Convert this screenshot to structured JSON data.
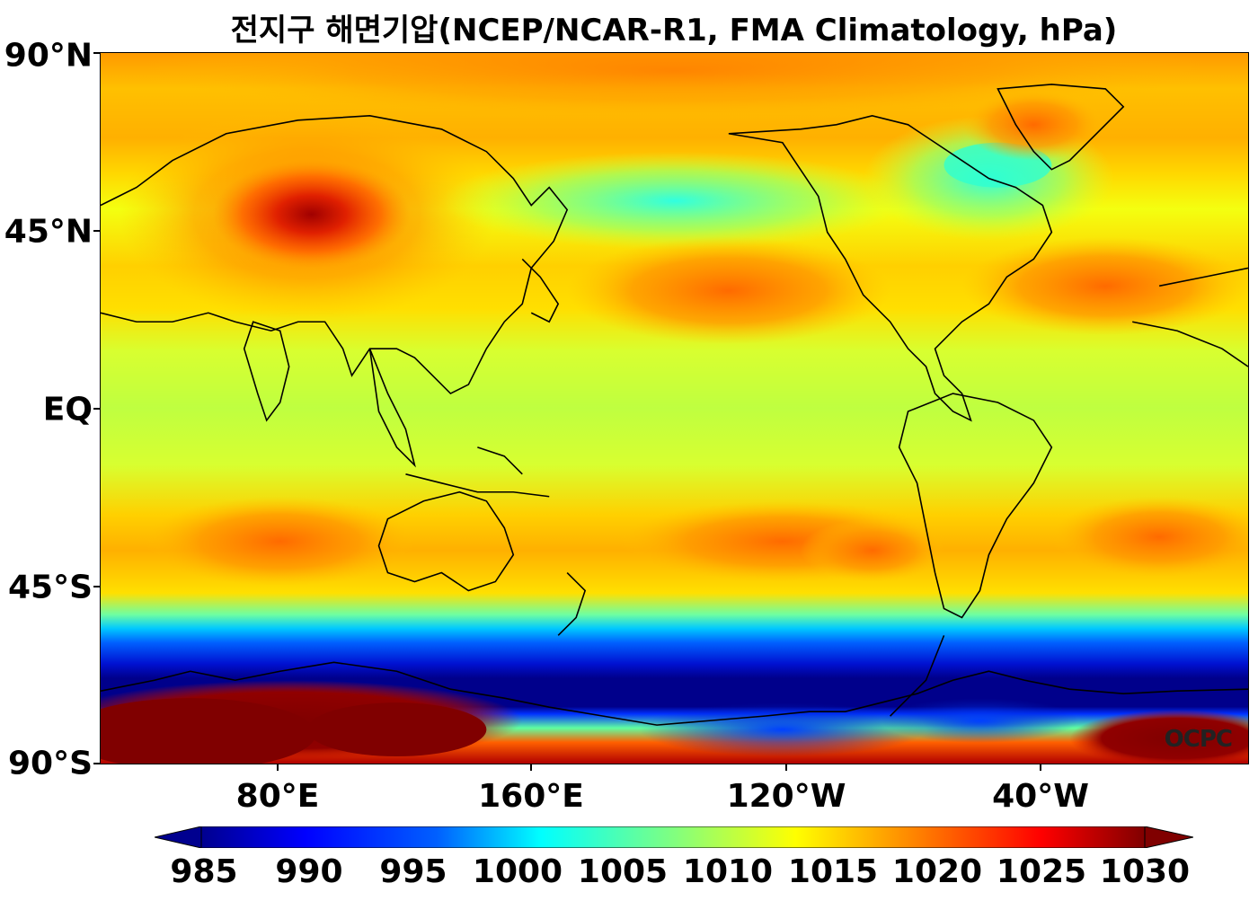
{
  "title": "전지구 해면기압(NCEP/NCAR-R1, FMA Climatology, hPa)",
  "watermark": "OCPC",
  "lat_labels": [
    "90°N",
    "45°N",
    "EQ",
    "45°S",
    "90°S"
  ],
  "lon_labels": [
    "80°E",
    "160°E",
    "120°W",
    "40°W"
  ],
  "colorbar": {
    "ticks": [
      "985",
      "990",
      "995",
      "1000",
      "1005",
      "1010",
      "1015",
      "1020",
      "1025",
      "1030"
    ],
    "min": 985,
    "max": 1030,
    "extend": "both",
    "colormap": "jet"
  },
  "colors": {
    "background_field": "#d8ff2e",
    "ocean_band_low": "#00008b",
    "antarctic_high": "#800000"
  }
}
